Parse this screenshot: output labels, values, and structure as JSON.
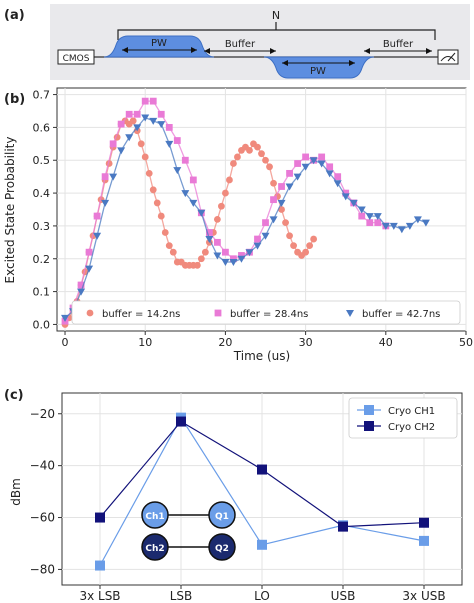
{
  "panel_labels": [
    "(a)",
    "(b)",
    "(c)"
  ],
  "schematic": {
    "N_label": "N",
    "pw_label": "PW",
    "buffer_label": "Buffer",
    "cmos_label": "CMOS"
  },
  "chart_data": [
    {
      "type": "scatter",
      "xlabel": "Time (us)",
      "ylabel": "Excited State Probability",
      "xlim": [
        -1,
        50
      ],
      "ylim": [
        -0.02,
        0.72
      ],
      "xticks": [
        0,
        10,
        20,
        30,
        40,
        50
      ],
      "yticks": [
        0.0,
        0.1,
        0.2,
        0.3,
        0.4,
        0.5,
        0.6,
        0.7
      ],
      "grid": true,
      "legend_position": "bottom",
      "series": [
        {
          "name": "buffer = 14.2ns",
          "color": "#f08a7d",
          "marker": "circle",
          "points": [
            [
              0,
              0.0
            ],
            [
              0.5,
              0.02
            ],
            [
              1,
              0.04
            ],
            [
              1.5,
              0.07
            ],
            [
              2,
              0.12
            ],
            [
              2.5,
              0.16
            ],
            [
              3,
              0.22
            ],
            [
              3.5,
              0.27
            ],
            [
              4,
              0.33
            ],
            [
              4.5,
              0.38
            ],
            [
              5,
              0.44
            ],
            [
              5.5,
              0.49
            ],
            [
              6,
              0.54
            ],
            [
              6.5,
              0.57
            ],
            [
              7,
              0.61
            ],
            [
              7.5,
              0.62
            ],
            [
              8,
              0.61
            ],
            [
              8.5,
              0.62
            ],
            [
              9,
              0.59
            ],
            [
              9.5,
              0.55
            ],
            [
              10,
              0.51
            ],
            [
              10.5,
              0.46
            ],
            [
              11,
              0.41
            ],
            [
              11.5,
              0.37
            ],
            [
              12,
              0.33
            ],
            [
              12.5,
              0.28
            ],
            [
              13,
              0.24
            ],
            [
              13.5,
              0.22
            ],
            [
              14,
              0.19
            ],
            [
              14.5,
              0.19
            ],
            [
              15,
              0.18
            ],
            [
              15.5,
              0.18
            ],
            [
              16,
              0.18
            ],
            [
              16.5,
              0.18
            ],
            [
              17,
              0.2
            ],
            [
              17.5,
              0.22
            ],
            [
              18,
              0.25
            ],
            [
              18.5,
              0.28
            ],
            [
              19,
              0.32
            ],
            [
              19.5,
              0.36
            ],
            [
              20,
              0.4
            ],
            [
              20.5,
              0.44
            ],
            [
              21,
              0.49
            ],
            [
              21.5,
              0.51
            ],
            [
              22,
              0.53
            ],
            [
              22.5,
              0.54
            ],
            [
              23,
              0.53
            ],
            [
              23.5,
              0.55
            ],
            [
              24,
              0.54
            ],
            [
              24.5,
              0.52
            ],
            [
              25,
              0.5
            ],
            [
              25.5,
              0.48
            ],
            [
              26,
              0.43
            ],
            [
              26.5,
              0.39
            ],
            [
              27,
              0.35
            ],
            [
              27.5,
              0.31
            ],
            [
              28,
              0.27
            ],
            [
              28.5,
              0.24
            ],
            [
              29,
              0.22
            ],
            [
              29.5,
              0.21
            ],
            [
              30,
              0.22
            ],
            [
              30.5,
              0.24
            ],
            [
              31,
              0.26
            ]
          ]
        },
        {
          "name": "buffer = 28.4ns",
          "color": "#e97ad6",
          "marker": "square",
          "points": [
            [
              0,
              0.01
            ],
            [
              1,
              0.05
            ],
            [
              2,
              0.12
            ],
            [
              3,
              0.22
            ],
            [
              4,
              0.33
            ],
            [
              5,
              0.45
            ],
            [
              6,
              0.55
            ],
            [
              7,
              0.61
            ],
            [
              8,
              0.64
            ],
            [
              9,
              0.64
            ],
            [
              10,
              0.68
            ],
            [
              11,
              0.68
            ],
            [
              12,
              0.64
            ],
            [
              13,
              0.6
            ],
            [
              14,
              0.56
            ],
            [
              15,
              0.5
            ],
            [
              16,
              0.44
            ],
            [
              17,
              0.34
            ],
            [
              18,
              0.28
            ],
            [
              19,
              0.25
            ],
            [
              20,
              0.22
            ],
            [
              21,
              0.2
            ],
            [
              22,
              0.21
            ],
            [
              23,
              0.22
            ],
            [
              24,
              0.26
            ],
            [
              25,
              0.31
            ],
            [
              26,
              0.38
            ],
            [
              27,
              0.42
            ],
            [
              28,
              0.46
            ],
            [
              29,
              0.49
            ],
            [
              30,
              0.51
            ],
            [
              31,
              0.5
            ],
            [
              32,
              0.51
            ],
            [
              33,
              0.48
            ],
            [
              34,
              0.45
            ],
            [
              35,
              0.4
            ],
            [
              36,
              0.37
            ],
            [
              37,
              0.33
            ],
            [
              38,
              0.31
            ],
            [
              39,
              0.31
            ],
            [
              40,
              0.3
            ]
          ]
        },
        {
          "name": "buffer = 42.7ns",
          "color": "#4a79c2",
          "marker": "triangle-down",
          "points": [
            [
              0,
              0.02
            ],
            [
              1,
              0.04
            ],
            [
              2,
              0.1
            ],
            [
              3,
              0.17
            ],
            [
              4,
              0.27
            ],
            [
              5,
              0.37
            ],
            [
              6,
              0.45
            ],
            [
              7,
              0.53
            ],
            [
              8,
              0.57
            ],
            [
              9,
              0.6
            ],
            [
              10,
              0.63
            ],
            [
              11,
              0.62
            ],
            [
              12,
              0.61
            ],
            [
              13,
              0.55
            ],
            [
              14,
              0.47
            ],
            [
              15,
              0.4
            ],
            [
              16,
              0.37
            ],
            [
              17,
              0.34
            ],
            [
              18,
              0.26
            ],
            [
              19,
              0.21
            ],
            [
              20,
              0.19
            ],
            [
              21,
              0.19
            ],
            [
              22,
              0.2
            ],
            [
              23,
              0.22
            ],
            [
              24,
              0.24
            ],
            [
              25,
              0.27
            ],
            [
              26,
              0.32
            ],
            [
              27,
              0.37
            ],
            [
              28,
              0.42
            ],
            [
              29,
              0.45
            ],
            [
              30,
              0.48
            ],
            [
              31,
              0.5
            ],
            [
              32,
              0.49
            ],
            [
              33,
              0.46
            ],
            [
              34,
              0.43
            ],
            [
              35,
              0.39
            ],
            [
              36,
              0.37
            ],
            [
              37,
              0.35
            ],
            [
              38,
              0.33
            ],
            [
              39,
              0.33
            ],
            [
              40,
              0.3
            ],
            [
              41,
              0.3
            ],
            [
              42,
              0.29
            ],
            [
              43,
              0.3
            ],
            [
              44,
              0.32
            ],
            [
              45,
              0.31
            ]
          ]
        }
      ]
    },
    {
      "type": "line",
      "ylabel": "dBm",
      "categories": [
        "3x LSB",
        "LSB",
        "LO",
        "USB",
        "3x USB"
      ],
      "ylim": [
        -86,
        -12
      ],
      "yticks": [
        -80,
        -60,
        -40,
        -20
      ],
      "grid": true,
      "legend_position": "top-right",
      "series": [
        {
          "name": "Cryo CH1",
          "color": "#6a9de8",
          "values": [
            -78.5,
            -21.5,
            -70.5,
            -63,
            -69
          ]
        },
        {
          "name": "Cryo CH2",
          "color": "#12127a",
          "values": [
            -60,
            -23,
            -41.5,
            -63.5,
            -62
          ]
        }
      ],
      "inset_nodes": [
        [
          "Ch1",
          "Q1"
        ],
        [
          "Ch2",
          "Q2"
        ]
      ]
    }
  ]
}
